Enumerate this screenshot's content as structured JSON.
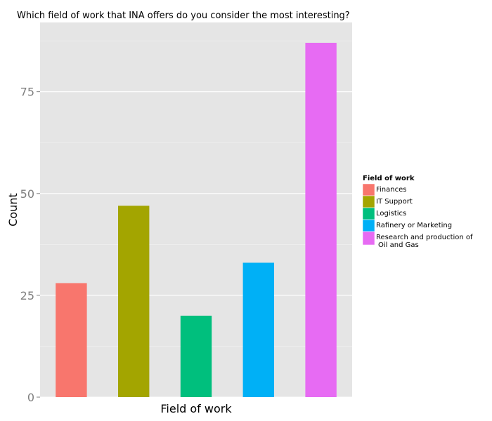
{
  "chart_data": {
    "type": "bar",
    "title": "Which field of work that INA offers do you consider the most interesting?",
    "xlabel": "Field of work",
    "ylabel": "Count",
    "categories": [
      "Finances",
      "IT Support",
      "Logistics",
      "Rafinery or Marketing",
      "Research and production of\nOil and Gas"
    ],
    "values": [
      28,
      47,
      20,
      33,
      87
    ],
    "colors": [
      "#f8766d",
      "#a3a500",
      "#00bf7d",
      "#00b0f6",
      "#e76bf3"
    ],
    "ylim": [
      0,
      92
    ],
    "yticks": [
      0,
      25,
      50,
      75
    ],
    "grid": true,
    "panel_background": "#e5e5e5",
    "legend": {
      "title": "Field of work",
      "placement": "right"
    }
  }
}
